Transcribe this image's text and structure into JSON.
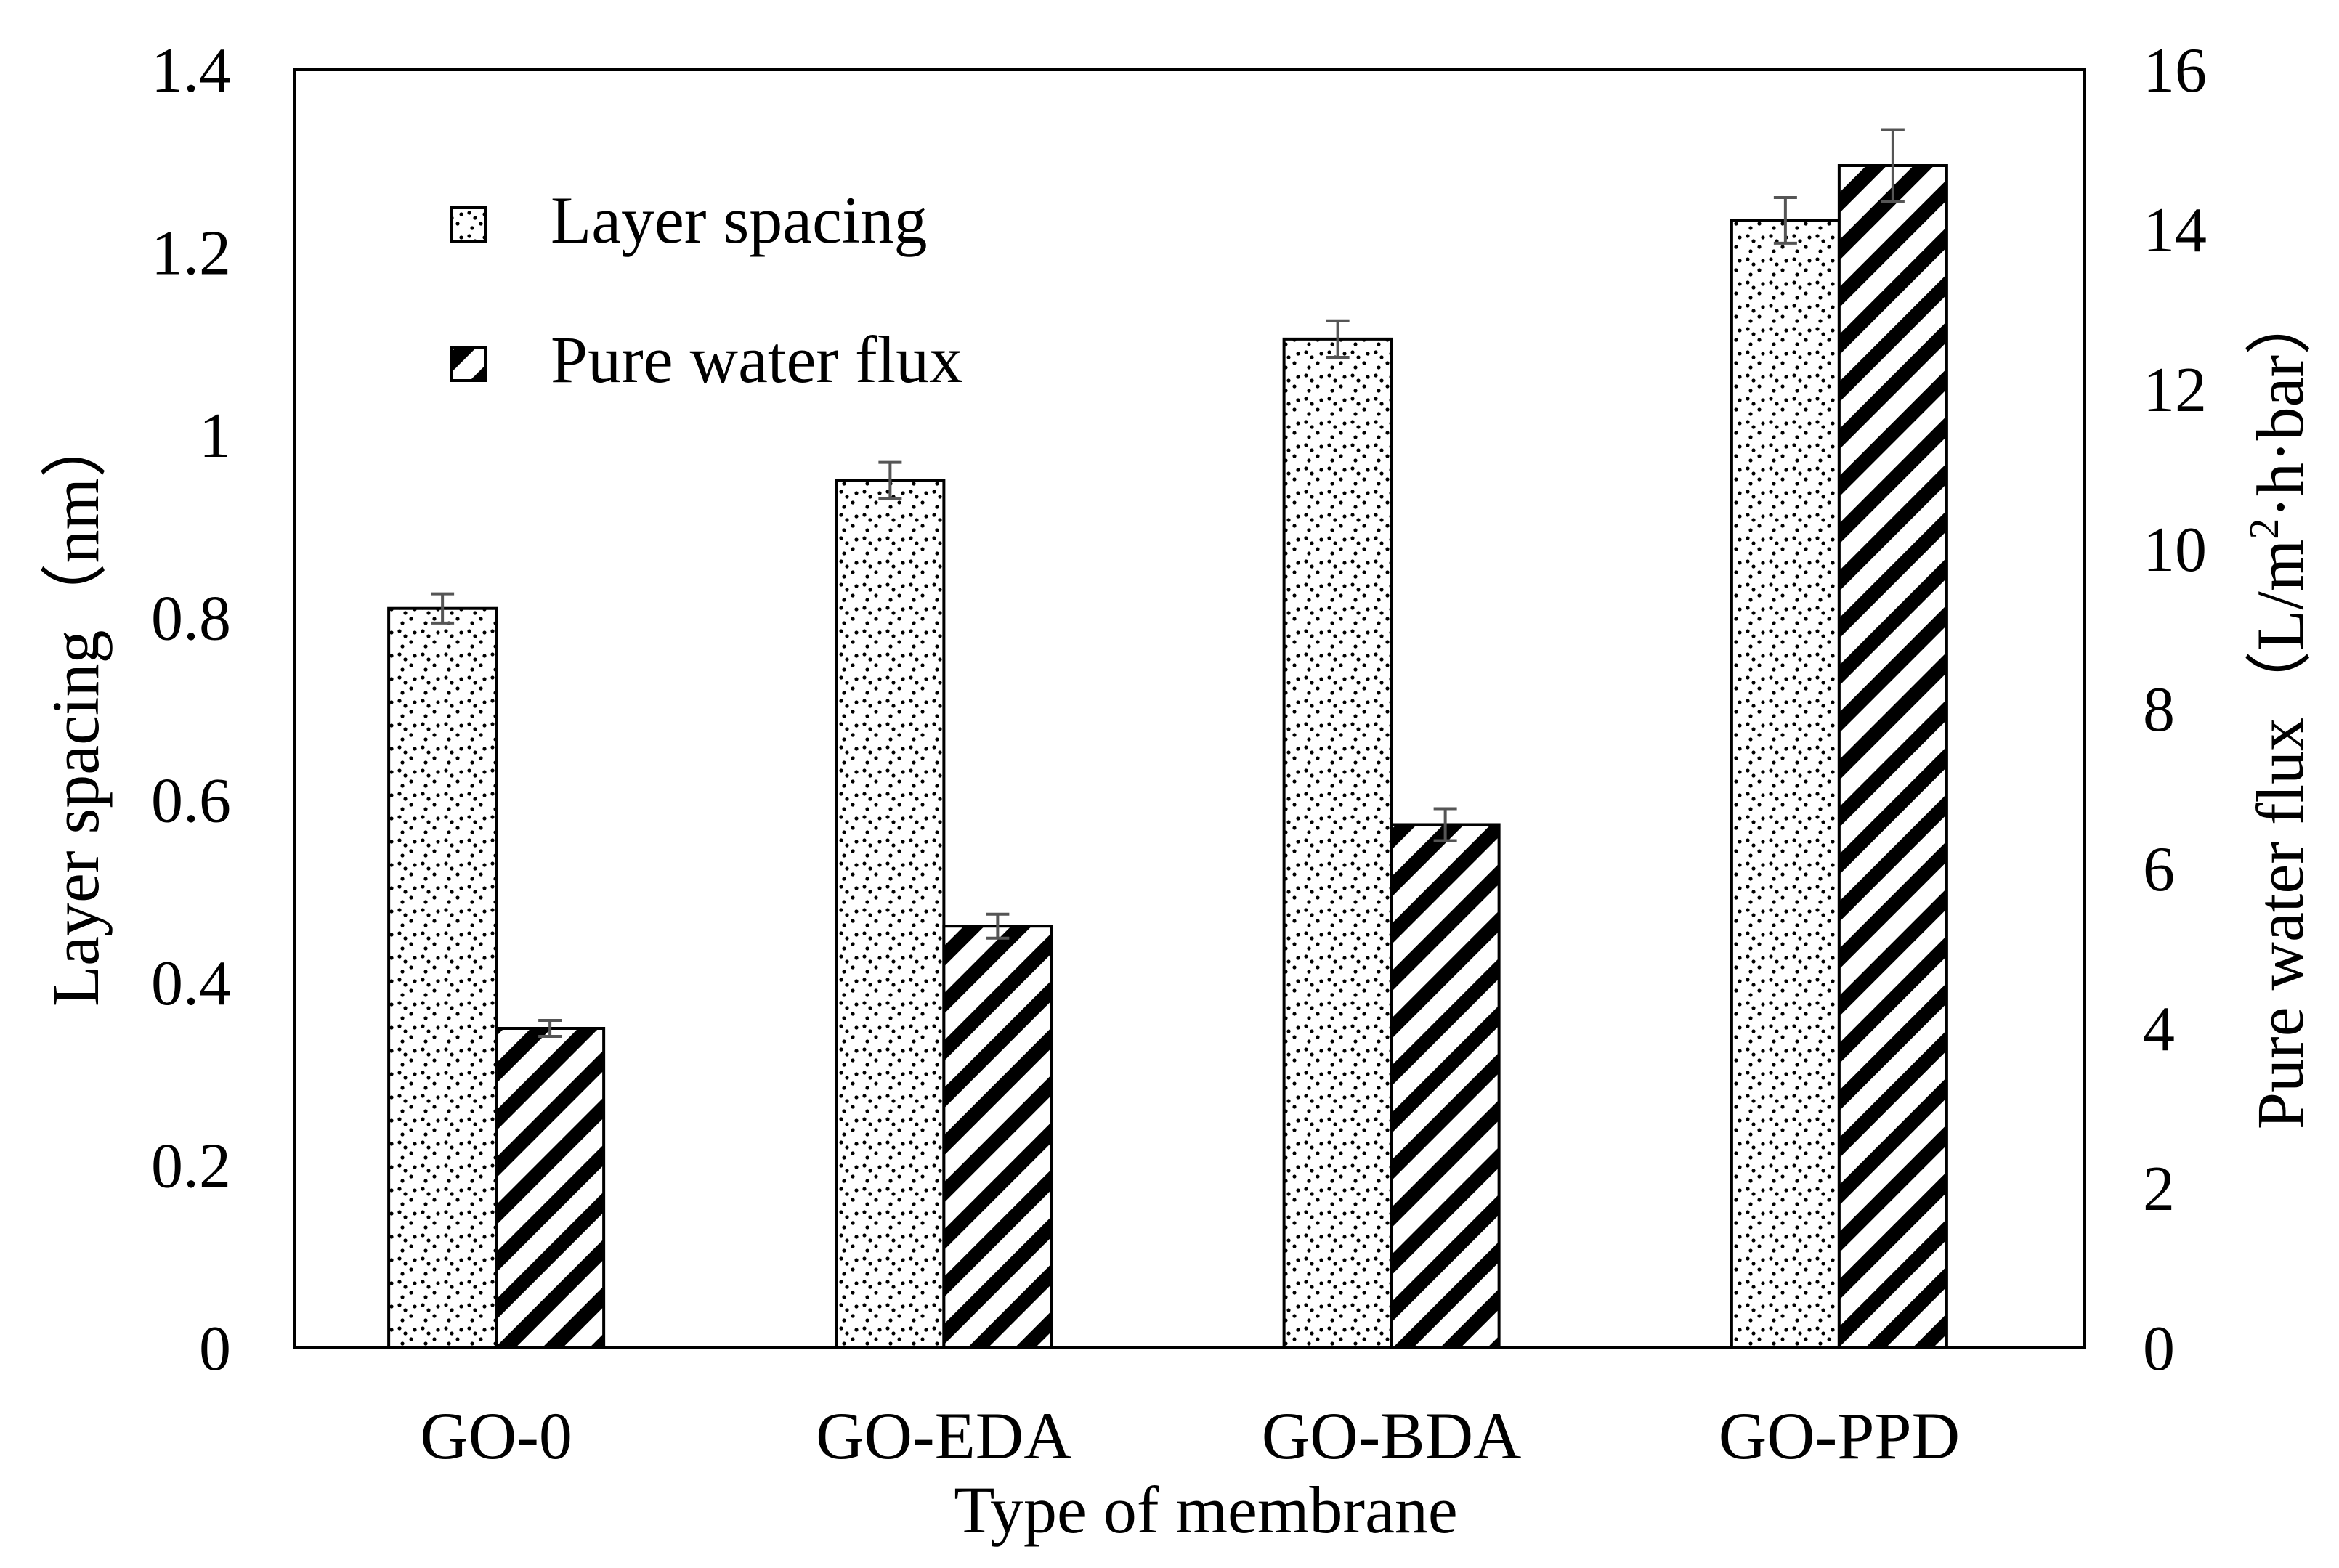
{
  "chart_data": {
    "type": "bar",
    "title": "",
    "xlabel": "Type of membrane",
    "ylabel_left": "Layer spacing（nm）",
    "ylabel_right_prefix": "Pure water flux（L/m",
    "ylabel_right_sup": "2",
    "ylabel_right_suffix": "·h·bar）",
    "categories": [
      "GO-0",
      "GO-EDA",
      "GO-BDA",
      "GO-PPD"
    ],
    "left_axis": {
      "min": 0,
      "max": 1.4,
      "ticks": [
        0,
        0.2,
        0.4,
        0.6,
        0.8,
        1,
        1.2,
        1.4
      ],
      "tick_labels": [
        "0",
        "0.2",
        "0.4",
        "0.6",
        "0.8",
        "1",
        "1.2",
        "1.4"
      ]
    },
    "right_axis": {
      "min": 0,
      "max": 16,
      "ticks": [
        0,
        2,
        4,
        6,
        8,
        10,
        12,
        14,
        16
      ],
      "tick_labels": [
        "0",
        "2",
        "4",
        "6",
        "8",
        "10",
        "12",
        "14",
        "16"
      ]
    },
    "series": [
      {
        "name": "Layer spacing",
        "axis": "left",
        "pattern": "dots",
        "values": [
          0.81,
          0.95,
          1.105,
          1.235
        ],
        "errors": [
          0.016,
          0.02,
          0.02,
          0.025
        ]
      },
      {
        "name": "Pure water flux",
        "axis": "right",
        "pattern": "diagonal-stripes",
        "values": [
          4.0,
          5.28,
          6.55,
          14.8
        ],
        "errors": [
          0.1,
          0.15,
          0.2,
          0.45
        ]
      }
    ],
    "legend": {
      "position": "top-left",
      "labels": [
        "Layer spacing",
        "Pure water flux"
      ]
    }
  }
}
